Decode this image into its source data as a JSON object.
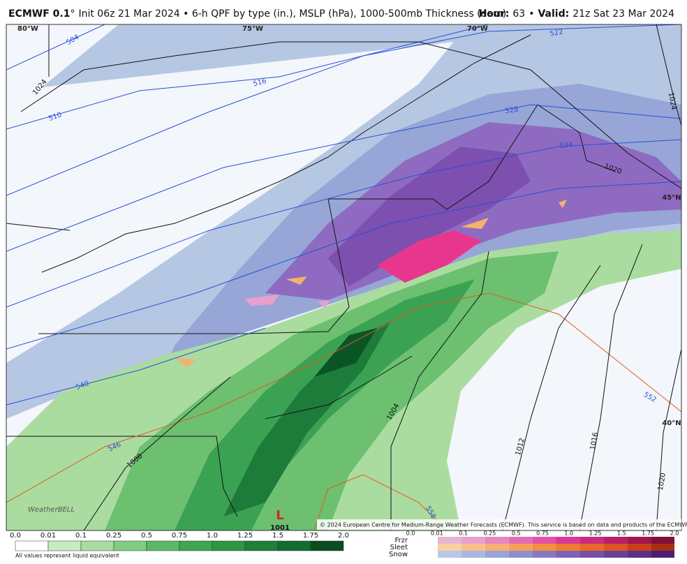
{
  "header": {
    "model": "ECMWF 0.1",
    "degree": "°",
    "description": "Init 06z 21 Mar 2024 • 6-h QPF by type (in.), MSLP (hPa), 1000-500mb Thickness (dam)",
    "hour_label": "Hour:",
    "hour": "63",
    "separator": "•",
    "valid_label": "Valid:",
    "valid": "21z Sat 23 Mar 2024"
  },
  "map": {
    "longitudes": [
      "80°W",
      "75°W",
      "70°W"
    ],
    "latitudes": [
      "45°N",
      "40°N"
    ],
    "thickness_labels": [
      "504",
      "510",
      "516",
      "522",
      "528",
      "534",
      "540",
      "546",
      "552",
      "558"
    ],
    "isobar_labels": [
      "1024",
      "1024",
      "1020",
      "1020",
      "1016",
      "1012",
      "1004",
      "1008"
    ],
    "low": {
      "symbol": "L",
      "pressure": "1001"
    },
    "copyright": "© 2024 European Centre for Medium-Range Weather Forecasts (ECMWF). This service is based on data and products of the ECMWF.",
    "logo": "WeatherBELL"
  },
  "legend": {
    "rain_ticks": [
      "0.0",
      "0.01",
      "0.1",
      "0.25",
      "0.5",
      "0.75",
      "1.0",
      "1.25",
      "1.5",
      "1.75",
      "2.0"
    ],
    "note": "All values represent liquid equivalent",
    "types": [
      "Frzr",
      "Sleet",
      "Snow"
    ],
    "mix_ticks": [
      "0.0",
      "0.01",
      "0.1",
      "0.25",
      "0.5",
      "0.75",
      "1.0",
      "1.25",
      "1.5",
      "1.75",
      "2.0"
    ]
  }
}
